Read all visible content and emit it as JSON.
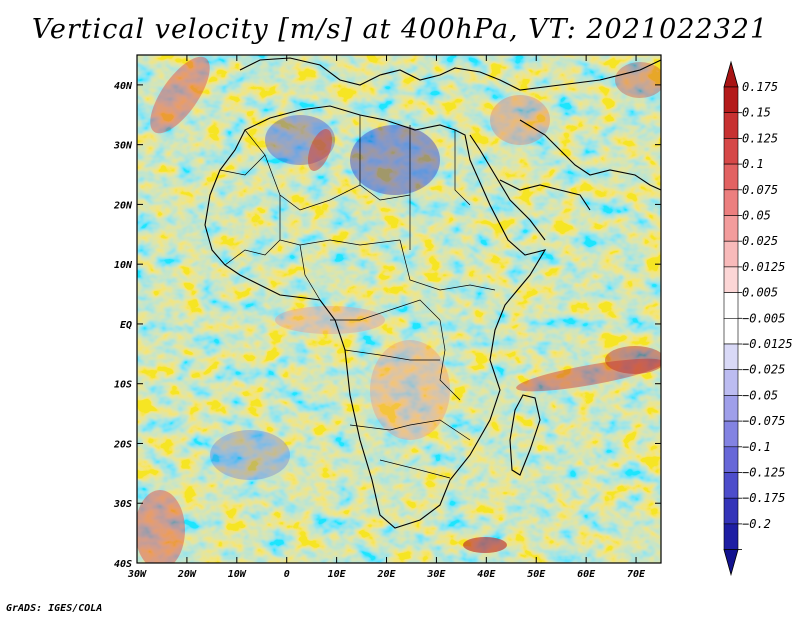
{
  "title": "Vertical velocity [m/s] at 400hPa, VT: 2021022321",
  "credit": "GrADS: IGES/COLA",
  "map": {
    "lon_range": [
      -30,
      75
    ],
    "lat_range": [
      -40,
      45
    ],
    "lon_ticks": [
      {
        "value": -30,
        "label": "30W"
      },
      {
        "value": -20,
        "label": "20W"
      },
      {
        "value": -10,
        "label": "10W"
      },
      {
        "value": 0,
        "label": "0"
      },
      {
        "value": 10,
        "label": "10E"
      },
      {
        "value": 20,
        "label": "20E"
      },
      {
        "value": 30,
        "label": "30E"
      },
      {
        "value": 40,
        "label": "40E"
      },
      {
        "value": 50,
        "label": "50E"
      },
      {
        "value": 60,
        "label": "60E"
      },
      {
        "value": 70,
        "label": "70E"
      }
    ],
    "lat_ticks": [
      {
        "value": 40,
        "label": "40N"
      },
      {
        "value": 30,
        "label": "30N"
      },
      {
        "value": 20,
        "label": "20N"
      },
      {
        "value": 10,
        "label": "10N"
      },
      {
        "value": 0,
        "label": "EQ"
      },
      {
        "value": -10,
        "label": "10S"
      },
      {
        "value": -20,
        "label": "20S"
      },
      {
        "value": -30,
        "label": "30S"
      },
      {
        "value": -40,
        "label": "40S"
      }
    ]
  },
  "colorbar": {
    "levels": [
      {
        "label": "0.175",
        "color": "#b41a1a"
      },
      {
        "label": "0.15",
        "color": "#c73131"
      },
      {
        "label": "0.125",
        "color": "#d64848"
      },
      {
        "label": "0.1",
        "color": "#e26262"
      },
      {
        "label": "0.075",
        "color": "#ec7f7f"
      },
      {
        "label": "0.05",
        "color": "#f39c9c"
      },
      {
        "label": "0.025",
        "color": "#f8baba"
      },
      {
        "label": "0.0125",
        "color": "#fcd6d6"
      },
      {
        "label": "0.005",
        "color": "#ffffff"
      },
      {
        "label": "−0.005",
        "color": "#ffffff"
      },
      {
        "label": "−0.0125",
        "color": "#d9d9f7"
      },
      {
        "label": "−0.025",
        "color": "#bcbcf1"
      },
      {
        "label": "−0.05",
        "color": "#9f9fea"
      },
      {
        "label": "−0.075",
        "color": "#8383e2"
      },
      {
        "label": "−0.1",
        "color": "#6767d8"
      },
      {
        "label": "−0.125",
        "color": "#4d4dcb"
      },
      {
        "label": "−0.175",
        "color": "#3434b9"
      },
      {
        "label": "−0.2",
        "color": "#1e1ea3"
      }
    ],
    "over_color": "#a81414",
    "under_color": "#12128f"
  }
}
